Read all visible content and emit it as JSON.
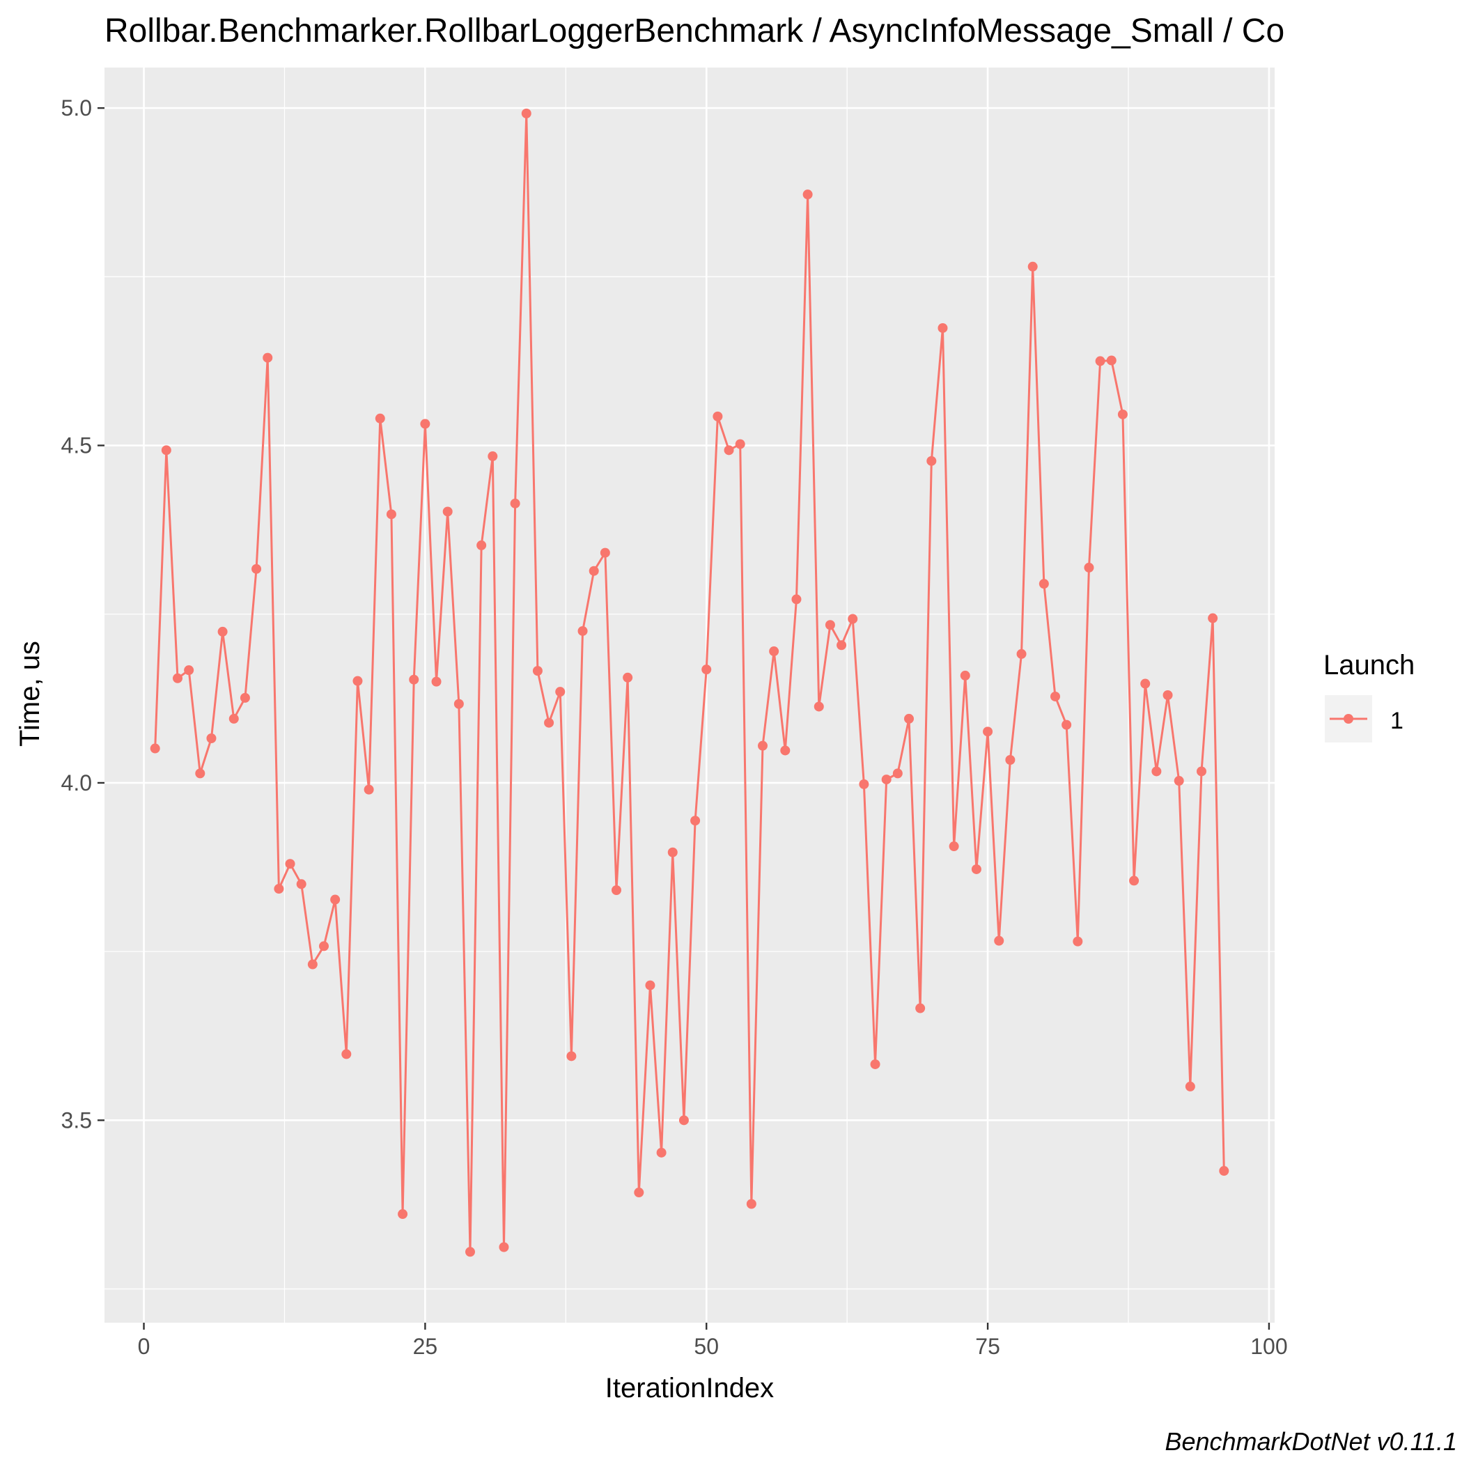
{
  "chart_data": {
    "type": "line",
    "title": "Rollbar.Benchmarker.RollbarLoggerBenchmark / AsyncInfoMessage_Small / Co",
    "xlabel": "IterationIndex",
    "ylabel": "Time, us",
    "xlim": [
      -3.5,
      100.5
    ],
    "ylim": [
      3.2,
      5.06
    ],
    "x_ticks": [
      0,
      25,
      50,
      75,
      100
    ],
    "x_tick_labels": [
      "0",
      "25",
      "50",
      "75",
      "100"
    ],
    "y_ticks": [
      3.5,
      4.0,
      4.5,
      5.0
    ],
    "y_tick_labels": [
      "3.5",
      "4.0",
      "4.5",
      "5.0"
    ],
    "grid": true,
    "legend": {
      "title": "Launch",
      "placement": "right",
      "entries": [
        {
          "label": "1",
          "color": "#F8766D"
        }
      ]
    },
    "series": [
      {
        "name": "1",
        "color": "#F8766D",
        "x": [
          1,
          2,
          3,
          4,
          5,
          6,
          7,
          8,
          9,
          10,
          11,
          12,
          13,
          14,
          15,
          16,
          17,
          18,
          19,
          20,
          21,
          22,
          23,
          24,
          25,
          26,
          27,
          28,
          29,
          30,
          31,
          32,
          33,
          34,
          35,
          36,
          37,
          38,
          39,
          40,
          41,
          42,
          43,
          44,
          45,
          46,
          47,
          48,
          49,
          50,
          51,
          52,
          53,
          54,
          55,
          56,
          57,
          58,
          59,
          60,
          61,
          62,
          63,
          64,
          65,
          66,
          67,
          68,
          69,
          70,
          71,
          72,
          73,
          74,
          75,
          76,
          77,
          78,
          79,
          80,
          81,
          82,
          83,
          84,
          85,
          86,
          87,
          88,
          89,
          90,
          91,
          92,
          93,
          94,
          95,
          96
        ],
        "y": [
          4.051,
          4.493,
          4.155,
          4.167,
          4.014,
          4.066,
          4.224,
          4.095,
          4.126,
          4.317,
          4.63,
          3.843,
          3.88,
          3.85,
          3.731,
          3.758,
          3.827,
          3.598,
          4.151,
          3.99,
          4.54,
          4.398,
          3.361,
          4.153,
          4.532,
          4.15,
          4.402,
          4.117,
          3.305,
          4.352,
          4.484,
          3.312,
          4.414,
          4.992,
          4.166,
          4.089,
          4.135,
          3.595,
          4.225,
          4.314,
          4.341,
          3.841,
          4.156,
          3.393,
          3.7,
          3.452,
          3.897,
          3.5,
          3.944,
          4.168,
          4.543,
          4.493,
          4.502,
          3.376,
          4.055,
          4.195,
          4.048,
          4.272,
          4.872,
          4.113,
          4.234,
          4.204,
          4.243,
          3.998,
          3.583,
          4.005,
          4.014,
          4.095,
          3.666,
          4.477,
          4.674,
          3.906,
          4.159,
          3.872,
          4.076,
          3.766,
          4.034,
          4.191,
          4.765,
          4.295,
          4.128,
          4.086,
          3.765,
          4.319,
          4.625,
          4.626,
          4.546,
          3.855,
          4.147,
          4.017,
          4.13,
          4.003,
          3.55,
          4.017,
          4.244,
          3.425
        ]
      }
    ]
  },
  "footer": {
    "caption": "BenchmarkDotNet v0.11.1"
  }
}
